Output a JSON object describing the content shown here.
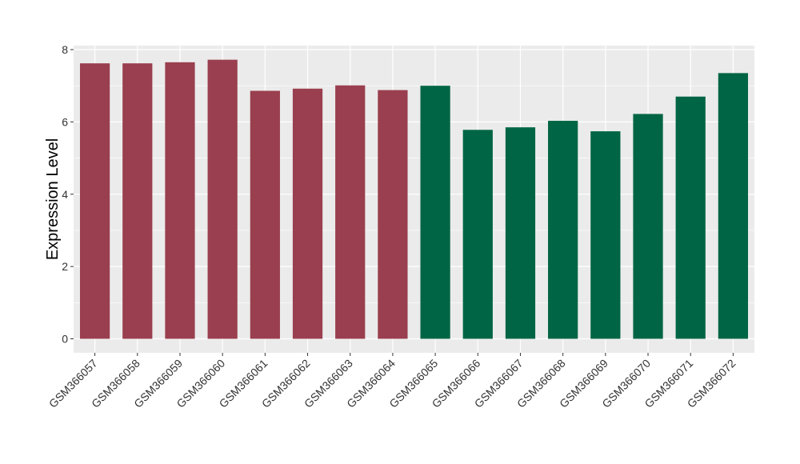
{
  "chart_data": {
    "type": "bar",
    "title": "",
    "xlabel": "",
    "ylabel": "Expression Level",
    "ylim": [
      0,
      8.3
    ],
    "yticks": [
      0,
      2,
      4,
      6,
      8
    ],
    "grid": true,
    "categories": [
      "GSM366057",
      "GSM366058",
      "GSM366059",
      "GSM366060",
      "GSM366061",
      "GSM366062",
      "GSM366063",
      "GSM366064",
      "GSM366065",
      "GSM366066",
      "GSM366067",
      "GSM366068",
      "GSM366069",
      "GSM366070",
      "GSM366071",
      "GSM366072"
    ],
    "values": [
      7.62,
      7.62,
      7.65,
      7.72,
      6.86,
      6.92,
      7.01,
      6.88,
      7.0,
      5.78,
      5.85,
      6.03,
      5.74,
      6.22,
      6.7,
      7.35
    ],
    "groups": [
      0,
      0,
      0,
      0,
      0,
      0,
      0,
      0,
      1,
      1,
      1,
      1,
      1,
      1,
      1,
      1
    ],
    "colors": [
      "#9a3f4f",
      "#006544"
    ],
    "panel_color": "#ebebeb",
    "grid_color": "#ffffff"
  }
}
